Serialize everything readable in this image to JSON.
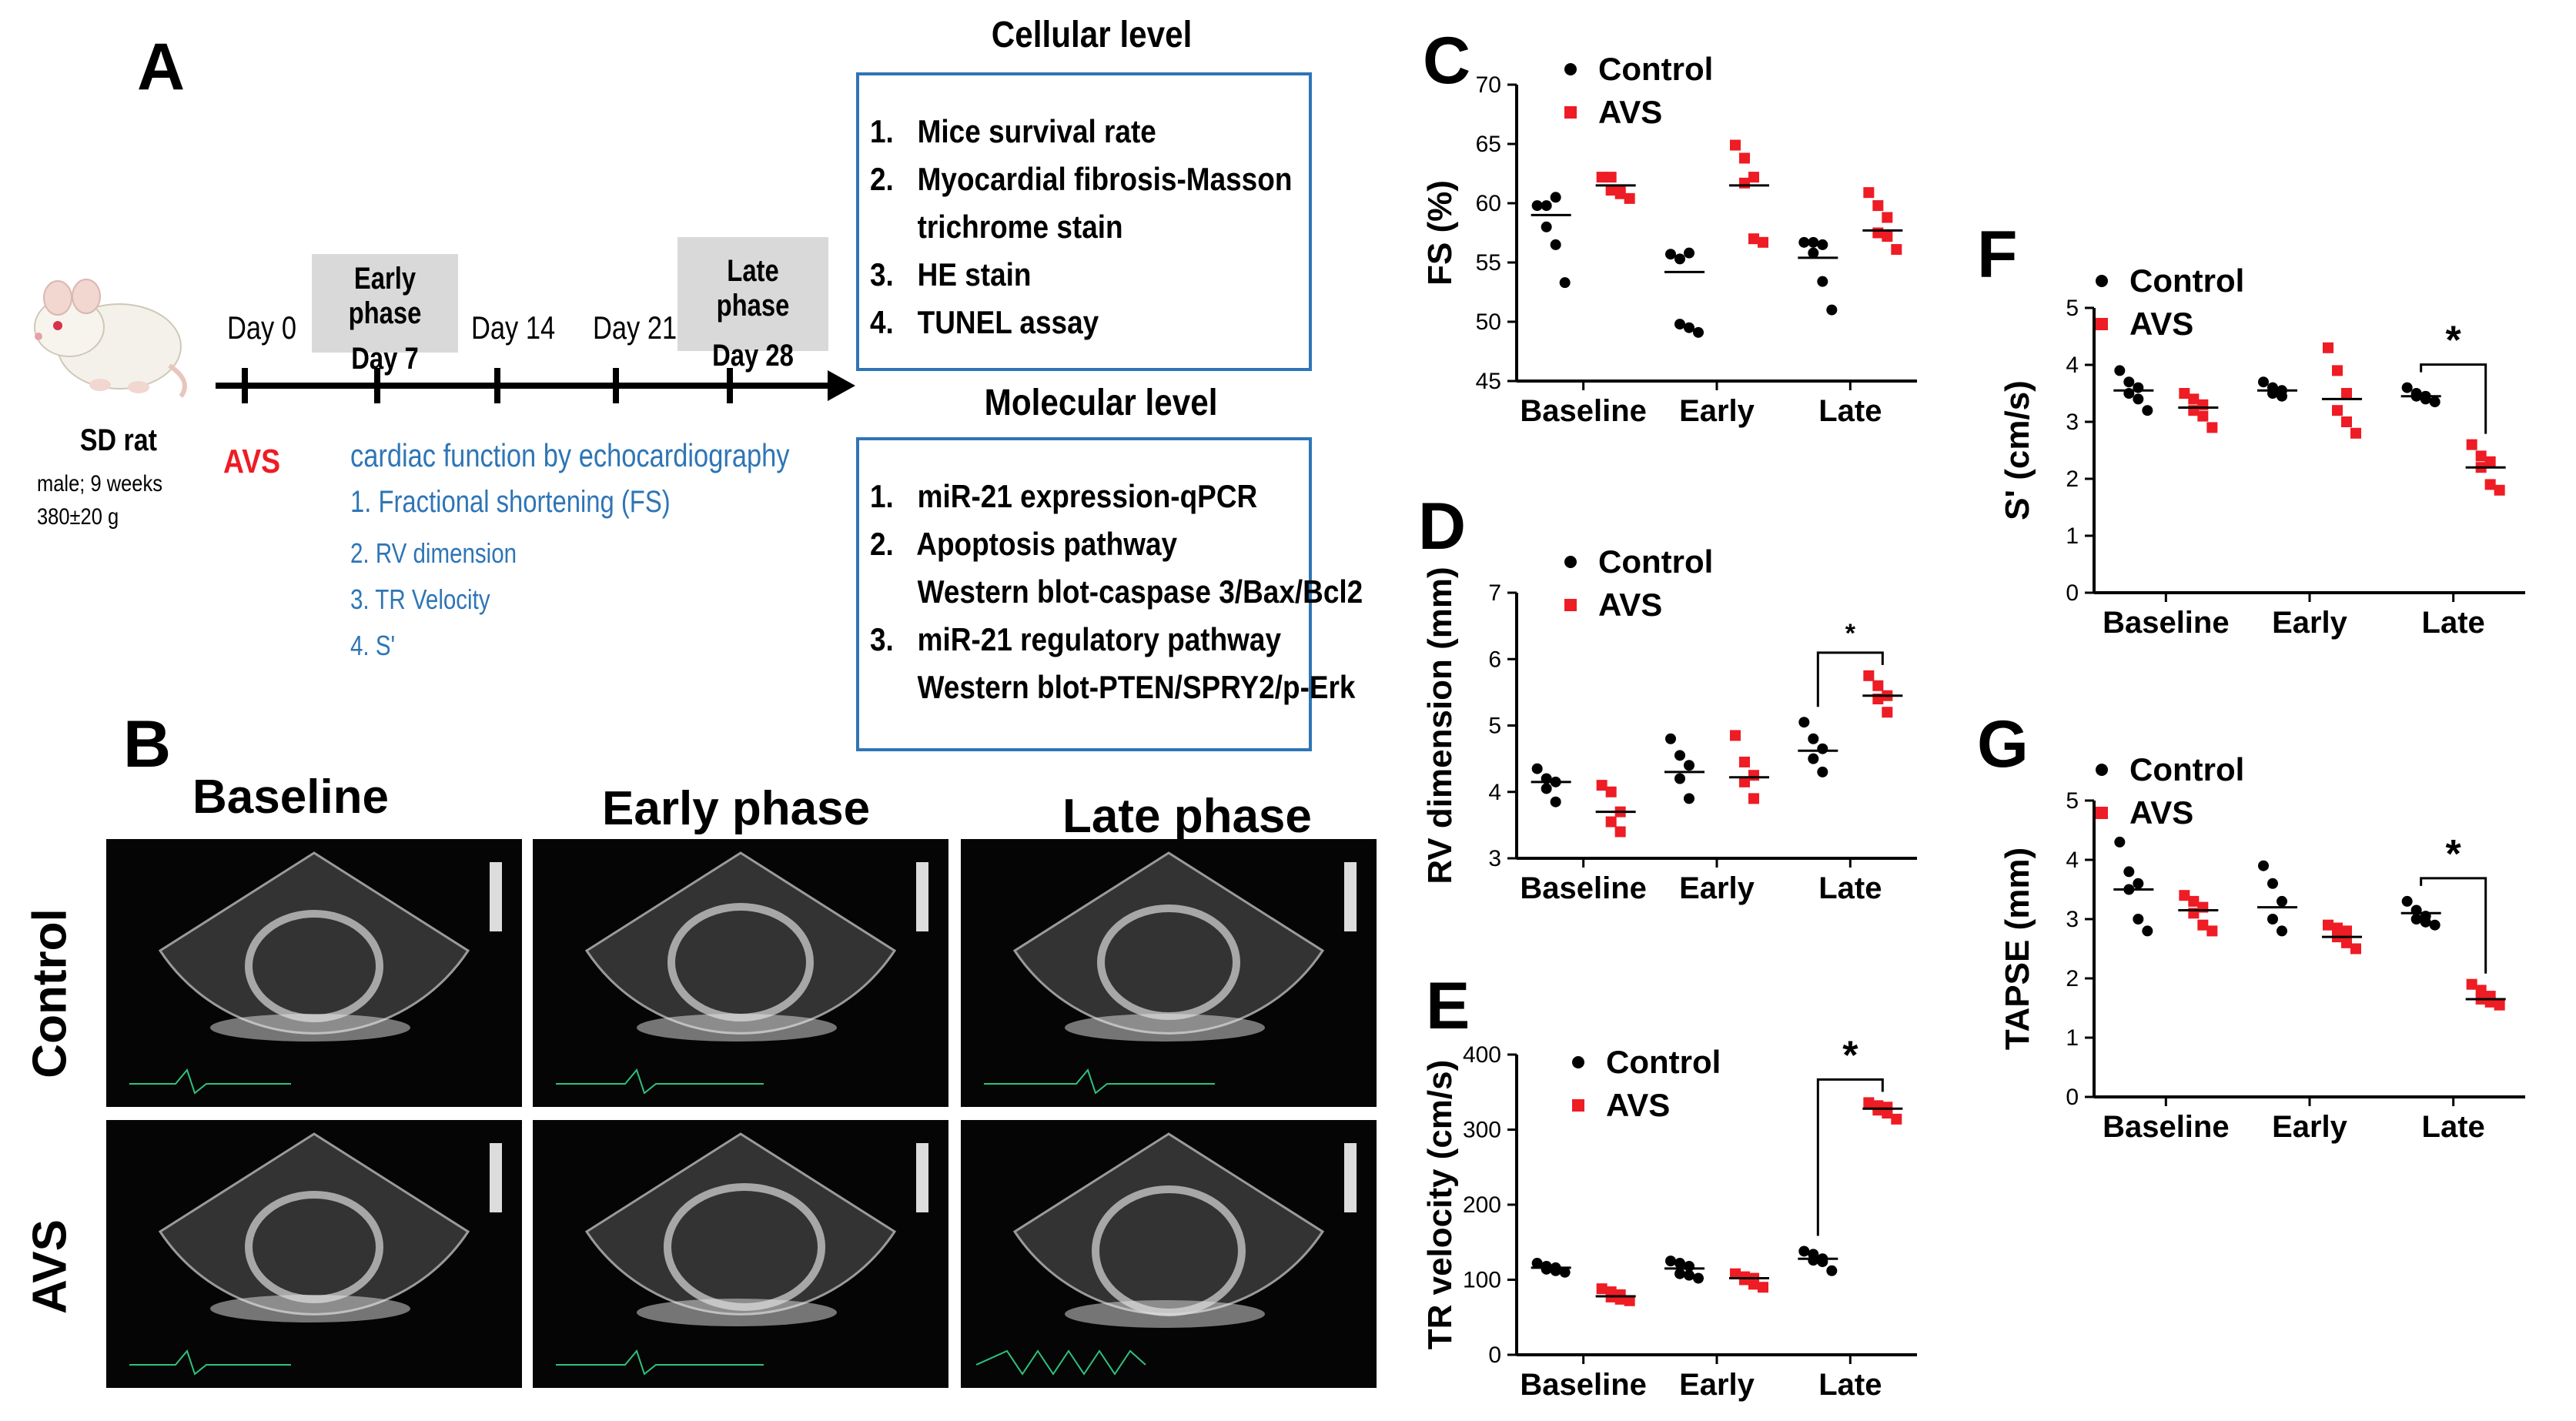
{
  "panel_a": {
    "label": "A",
    "animal": {
      "name": "SD rat",
      "line1": "male; 9 weeks",
      "line2": "380±20 g"
    },
    "timeline": {
      "days": [
        "Day 0",
        "Day 14",
        "Day 21"
      ],
      "early_phase": {
        "title": "Early phase",
        "day": "Day 7"
      },
      "late_phase": {
        "title": "Late phase",
        "day": "Day 28"
      },
      "avs_label": "AVS"
    },
    "echo_title": "cardiac function by echocardiography",
    "echo_items": [
      "1. Fractional shortening (FS)",
      "2. RV dimension",
      "3. TR Velocity",
      "4. S'"
    ],
    "cellular": {
      "title": "Cellular level",
      "items": [
        "1.   Mice survival rate",
        "2.   Myocardial fibrosis-Masson",
        "      trichrome stain",
        "3.   HE stain",
        "4.   TUNEL assay"
      ]
    },
    "molecular": {
      "title": "Molecular level",
      "items": [
        "1.   miR-21 expression-qPCR",
        "2.   Apoptosis pathway",
        "      Western blot-caspase 3/Bax/Bcl2",
        "3.   miR-21 regulatory pathway",
        "      Western blot-PTEN/SPRY2/p-Erk"
      ]
    }
  },
  "panel_b": {
    "label": "B",
    "columns": [
      "Baseline",
      "Early phase",
      "Late phase"
    ],
    "rows": [
      "Control",
      "AVS"
    ]
  },
  "colors": {
    "control": "#000000",
    "avs": "#ee1c24",
    "accent_blue": "#2e75b6",
    "box_border": "#2e75b6",
    "phase_bg": "#d9d9d9"
  },
  "chart_data": [
    {
      "id": "C",
      "type": "scatter",
      "title": "",
      "xlabel": "",
      "ylabel": "FS (%)",
      "categories": [
        "Baseline",
        "Early",
        "Late"
      ],
      "ylim": [
        45,
        70
      ],
      "yticks": [
        45,
        50,
        55,
        60,
        65,
        70
      ],
      "series": [
        {
          "name": "Control",
          "values": [
            [
              59.8,
              59.8,
              60.5,
              58,
              56.5,
              53.3
            ],
            [
              55.7,
              55.3,
              55.8,
              49.8,
              49.5,
              49.1
            ],
            [
              56.7,
              56.7,
              56.5,
              55.8,
              53.4,
              51
            ]
          ],
          "means": [
            59,
            54.2,
            55.4
          ]
        },
        {
          "name": "AVS",
          "values": [
            [
              62.2,
              62.2,
              61.1,
              61.1,
              60.8,
              60.4
            ],
            [
              64.9,
              63.8,
              62.2,
              61.7,
              57,
              56.7
            ],
            [
              60.9,
              59.8,
              58.8,
              57.5,
              57.2,
              56.1
            ]
          ],
          "means": [
            61.5,
            61.5,
            57.7
          ]
        }
      ],
      "significance": []
    },
    {
      "id": "D",
      "type": "scatter",
      "title": "",
      "xlabel": "",
      "ylabel": "RV dimension (mm)",
      "categories": [
        "Baseline",
        "Early",
        "Late"
      ],
      "ylim": [
        3,
        7
      ],
      "yticks": [
        3,
        4,
        5,
        6,
        7
      ],
      "series": [
        {
          "name": "Control",
          "values": [
            [
              4.35,
              4.2,
              4.15,
              4.05,
              3.85
            ],
            [
              4.8,
              4.55,
              4.4,
              4.2,
              3.9
            ],
            [
              5.05,
              4.8,
              4.65,
              4.5,
              4.3
            ]
          ],
          "means": [
            4.15,
            4.3,
            4.62
          ]
        },
        {
          "name": "AVS",
          "values": [
            [
              4.1,
              4.0,
              3.7,
              3.55,
              3.4
            ],
            [
              4.85,
              4.45,
              4.25,
              4.15,
              3.9
            ],
            [
              5.75,
              5.6,
              5.45,
              5.4,
              5.2
            ]
          ],
          "means": [
            3.7,
            4.22,
            5.45
          ]
        }
      ],
      "significance": [
        {
          "category": "Late",
          "label": "*"
        }
      ]
    },
    {
      "id": "E",
      "type": "scatter",
      "title": "",
      "xlabel": "",
      "ylabel": "TR velocity (cm/s)",
      "categories": [
        "Baseline",
        "Early",
        "Late"
      ],
      "ylim": [
        0,
        400
      ],
      "yticks": [
        0,
        100,
        200,
        300,
        400
      ],
      "series": [
        {
          "name": "Control",
          "values": [
            [
              122,
              118,
              116,
              114,
              112,
              110
            ],
            [
              125,
              122,
              118,
              108,
              106,
              102
            ],
            [
              138,
              134,
              128,
              126,
              124,
              112
            ]
          ],
          "means": [
            116,
            115,
            128
          ]
        },
        {
          "name": "AVS",
          "values": [
            [
              88,
              84,
              80,
              77,
              74,
              72
            ],
            [
              108,
              104,
              102,
              100,
              94,
              90
            ],
            [
              336,
              332,
              330,
              326,
              322,
              314
            ]
          ],
          "means": [
            78,
            102,
            328
          ]
        }
      ],
      "significance": [
        {
          "category": "Late",
          "label": "*"
        }
      ]
    },
    {
      "id": "F",
      "type": "scatter",
      "title": "",
      "xlabel": "",
      "ylabel": "S' (cm/s)",
      "categories": [
        "Baseline",
        "Early",
        "Late"
      ],
      "ylim": [
        0,
        5
      ],
      "yticks": [
        0,
        1,
        2,
        3,
        4,
        5
      ],
      "series": [
        {
          "name": "Control",
          "values": [
            [
              3.9,
              3.7,
              3.6,
              3.5,
              3.4,
              3.2
            ],
            [
              3.7,
              3.6,
              3.55,
              3.5,
              3.45
            ],
            [
              3.6,
              3.5,
              3.45,
              3.45,
              3.4,
              3.35
            ]
          ],
          "means": [
            3.55,
            3.55,
            3.45
          ]
        },
        {
          "name": "AVS",
          "values": [
            [
              3.5,
              3.4,
              3.3,
              3.2,
              3.1,
              2.9
            ],
            [
              4.3,
              3.9,
              3.5,
              3.2,
              3.0,
              2.8
            ],
            [
              2.6,
              2.4,
              2.3,
              2.2,
              1.9,
              1.8
            ]
          ],
          "means": [
            3.25,
            3.4,
            2.2
          ]
        }
      ],
      "significance": [
        {
          "category": "Late",
          "label": "*"
        }
      ]
    },
    {
      "id": "G",
      "type": "scatter",
      "title": "",
      "xlabel": "",
      "ylabel": "TAPSE (mm)",
      "categories": [
        "Baseline",
        "Early",
        "Late"
      ],
      "ylim": [
        0,
        5
      ],
      "yticks": [
        0,
        1,
        2,
        3,
        4,
        5
      ],
      "series": [
        {
          "name": "Control",
          "values": [
            [
              4.3,
              3.8,
              3.6,
              3.5,
              3.0,
              2.8
            ],
            [
              3.9,
              3.6,
              3.3,
              3.0,
              2.8
            ],
            [
              3.3,
              3.15,
              3.05,
              3.0,
              2.95,
              2.9
            ]
          ],
          "means": [
            3.5,
            3.2,
            3.1
          ]
        },
        {
          "name": "AVS",
          "values": [
            [
              3.4,
              3.3,
              3.2,
              3.1,
              2.9,
              2.8
            ],
            [
              2.9,
              2.85,
              2.8,
              2.7,
              2.6,
              2.5
            ],
            [
              1.9,
              1.8,
              1.7,
              1.65,
              1.6,
              1.55
            ]
          ],
          "means": [
            3.15,
            2.7,
            1.65
          ]
        }
      ],
      "significance": [
        {
          "category": "Late",
          "label": "*"
        }
      ]
    }
  ]
}
